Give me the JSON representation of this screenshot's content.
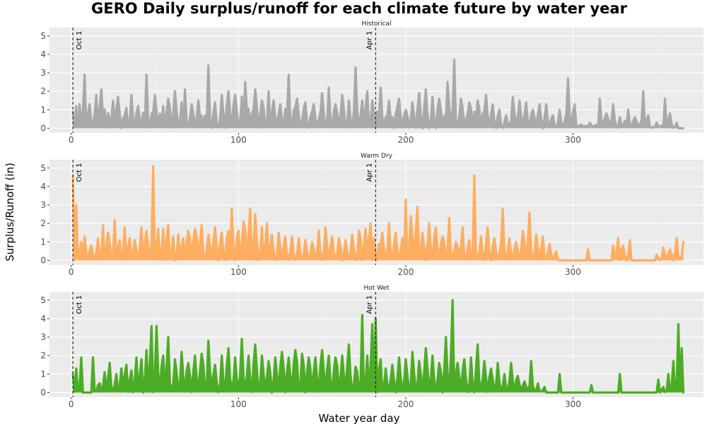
{
  "chart_data": {
    "type": "area",
    "title": "GERO Daily surplus/runoff for each climate future by water year",
    "xlabel": "Water year day",
    "ylabel": "Surplus/Runoff (in)",
    "xlim": [
      -13,
      378
    ],
    "ylim": [
      -0.25,
      5.45
    ],
    "x_ticks": [
      0,
      100,
      200,
      300
    ],
    "y_ticks": [
      0,
      1,
      2,
      3,
      4,
      5
    ],
    "grid": true,
    "legend": "none",
    "vlines": [
      {
        "x": 1,
        "label": "Oct 1"
      },
      {
        "x": 182,
        "label": "Apr 1"
      }
    ],
    "x_range": [
      0,
      366
    ],
    "panels": [
      {
        "strip": "Historical",
        "color": "#a9a9a9",
        "peaks": [
          {
            "x": 1,
            "y": 0.9
          },
          {
            "x": 3,
            "y": 1.2
          },
          {
            "x": 5,
            "y": 1.3
          },
          {
            "x": 8,
            "y": 2.9
          },
          {
            "x": 11,
            "y": 1.3
          },
          {
            "x": 15,
            "y": 1.8
          },
          {
            "x": 18,
            "y": 2.1
          },
          {
            "x": 25,
            "y": 1.5
          },
          {
            "x": 28,
            "y": 1.7
          },
          {
            "x": 33,
            "y": 1.1
          },
          {
            "x": 36,
            "y": 1.8
          },
          {
            "x": 40,
            "y": 1.2
          },
          {
            "x": 45,
            "y": 2.9
          },
          {
            "x": 50,
            "y": 1.8
          },
          {
            "x": 55,
            "y": 1.2
          },
          {
            "x": 58,
            "y": 1.6
          },
          {
            "x": 62,
            "y": 2.0
          },
          {
            "x": 66,
            "y": 1.4
          },
          {
            "x": 68,
            "y": 2.1
          },
          {
            "x": 72,
            "y": 1.3
          },
          {
            "x": 76,
            "y": 1.5
          },
          {
            "x": 82,
            "y": 3.4
          },
          {
            "x": 86,
            "y": 1.4
          },
          {
            "x": 90,
            "y": 1.8
          },
          {
            "x": 94,
            "y": 2.0
          },
          {
            "x": 98,
            "y": 1.8
          },
          {
            "x": 102,
            "y": 1.7
          },
          {
            "x": 104,
            "y": 2.5
          },
          {
            "x": 110,
            "y": 2.1
          },
          {
            "x": 114,
            "y": 1.5
          },
          {
            "x": 118,
            "y": 2.0
          },
          {
            "x": 121,
            "y": 1.5
          },
          {
            "x": 125,
            "y": 1.3
          },
          {
            "x": 130,
            "y": 2.9
          },
          {
            "x": 135,
            "y": 1.6
          },
          {
            "x": 140,
            "y": 1.4
          },
          {
            "x": 145,
            "y": 1.3
          },
          {
            "x": 150,
            "y": 1.9
          },
          {
            "x": 154,
            "y": 2.2
          },
          {
            "x": 158,
            "y": 1.3
          },
          {
            "x": 162,
            "y": 1.8
          },
          {
            "x": 166,
            "y": 1.5
          },
          {
            "x": 170,
            "y": 3.3
          },
          {
            "x": 174,
            "y": 1.5
          },
          {
            "x": 177,
            "y": 2.0
          },
          {
            "x": 180,
            "y": 1.5
          },
          {
            "x": 185,
            "y": 2.2
          },
          {
            "x": 190,
            "y": 1.5
          },
          {
            "x": 196,
            "y": 1.6
          },
          {
            "x": 200,
            "y": 1.0
          },
          {
            "x": 204,
            "y": 1.4
          },
          {
            "x": 208,
            "y": 1.9
          },
          {
            "x": 212,
            "y": 2.1
          },
          {
            "x": 216,
            "y": 1.7
          },
          {
            "x": 220,
            "y": 1.6
          },
          {
            "x": 225,
            "y": 2.5
          },
          {
            "x": 229,
            "y": 3.7
          },
          {
            "x": 233,
            "y": 1.6
          },
          {
            "x": 238,
            "y": 1.4
          },
          {
            "x": 243,
            "y": 1.5
          },
          {
            "x": 248,
            "y": 1.8
          },
          {
            "x": 252,
            "y": 1.3
          },
          {
            "x": 256,
            "y": 1.0
          },
          {
            "x": 260,
            "y": 0.7
          },
          {
            "x": 264,
            "y": 1.7
          },
          {
            "x": 268,
            "y": 1.5
          },
          {
            "x": 272,
            "y": 1.4
          },
          {
            "x": 276,
            "y": 1.0
          },
          {
            "x": 280,
            "y": 1.3
          },
          {
            "x": 284,
            "y": 1.3
          },
          {
            "x": 288,
            "y": 0.7
          },
          {
            "x": 292,
            "y": 1.0
          },
          {
            "x": 297,
            "y": 2.7
          },
          {
            "x": 301,
            "y": 1.3
          },
          {
            "x": 305,
            "y": 0.2
          },
          {
            "x": 310,
            "y": 0.3
          },
          {
            "x": 316,
            "y": 1.6
          },
          {
            "x": 320,
            "y": 0.8
          },
          {
            "x": 324,
            "y": 1.3
          },
          {
            "x": 328,
            "y": 0.6
          },
          {
            "x": 333,
            "y": 1.0
          },
          {
            "x": 337,
            "y": 0.6
          },
          {
            "x": 342,
            "y": 2.0
          },
          {
            "x": 345,
            "y": 0.7
          },
          {
            "x": 350,
            "y": 0.3
          },
          {
            "x": 355,
            "y": 1.6
          },
          {
            "x": 358,
            "y": 0.8
          },
          {
            "x": 362,
            "y": 0.3
          },
          {
            "x": 366,
            "y": 0.0
          }
        ]
      },
      {
        "strip": "Warm Dry",
        "color": "#fdae61",
        "peaks": [
          {
            "x": 1,
            "y": 4.6
          },
          {
            "x": 3,
            "y": 3.0
          },
          {
            "x": 6,
            "y": 1.0
          },
          {
            "x": 8,
            "y": 1.3
          },
          {
            "x": 12,
            "y": 0.8
          },
          {
            "x": 16,
            "y": 1.2
          },
          {
            "x": 19,
            "y": 1.9
          },
          {
            "x": 22,
            "y": 1.5
          },
          {
            "x": 26,
            "y": 2.2
          },
          {
            "x": 29,
            "y": 1.1
          },
          {
            "x": 32,
            "y": 1.8
          },
          {
            "x": 35,
            "y": 1.2
          },
          {
            "x": 38,
            "y": 1.1
          },
          {
            "x": 42,
            "y": 1.8
          },
          {
            "x": 45,
            "y": 1.6
          },
          {
            "x": 49,
            "y": 5.1
          },
          {
            "x": 52,
            "y": 1.7
          },
          {
            "x": 55,
            "y": 1.7
          },
          {
            "x": 58,
            "y": 1.9
          },
          {
            "x": 61,
            "y": 1.3
          },
          {
            "x": 64,
            "y": 1.4
          },
          {
            "x": 67,
            "y": 1.2
          },
          {
            "x": 70,
            "y": 1.6
          },
          {
            "x": 74,
            "y": 1.7
          },
          {
            "x": 78,
            "y": 1.9
          },
          {
            "x": 82,
            "y": 1.4
          },
          {
            "x": 86,
            "y": 1.8
          },
          {
            "x": 90,
            "y": 1.5
          },
          {
            "x": 94,
            "y": 1.6
          },
          {
            "x": 96,
            "y": 2.8
          },
          {
            "x": 100,
            "y": 1.6
          },
          {
            "x": 103,
            "y": 2.1
          },
          {
            "x": 107,
            "y": 2.8
          },
          {
            "x": 110,
            "y": 2.5
          },
          {
            "x": 114,
            "y": 1.8
          },
          {
            "x": 117,
            "y": 2.0
          },
          {
            "x": 120,
            "y": 1.4
          },
          {
            "x": 124,
            "y": 1.5
          },
          {
            "x": 128,
            "y": 1.3
          },
          {
            "x": 132,
            "y": 1.3
          },
          {
            "x": 136,
            "y": 1.2
          },
          {
            "x": 140,
            "y": 1.1
          },
          {
            "x": 144,
            "y": 1.0
          },
          {
            "x": 148,
            "y": 1.6
          },
          {
            "x": 152,
            "y": 1.8
          },
          {
            "x": 156,
            "y": 1.3
          },
          {
            "x": 160,
            "y": 1.2
          },
          {
            "x": 164,
            "y": 1.1
          },
          {
            "x": 168,
            "y": 1.4
          },
          {
            "x": 172,
            "y": 1.6
          },
          {
            "x": 176,
            "y": 1.7
          },
          {
            "x": 179,
            "y": 2.0
          },
          {
            "x": 181,
            "y": 1.2
          },
          {
            "x": 186,
            "y": 1.5
          },
          {
            "x": 190,
            "y": 2.0
          },
          {
            "x": 194,
            "y": 1.5
          },
          {
            "x": 198,
            "y": 1.2
          },
          {
            "x": 200,
            "y": 3.3
          },
          {
            "x": 203,
            "y": 2.4
          },
          {
            "x": 207,
            "y": 2.9
          },
          {
            "x": 210,
            "y": 1.5
          },
          {
            "x": 214,
            "y": 2.0
          },
          {
            "x": 218,
            "y": 1.8
          },
          {
            "x": 222,
            "y": 1.3
          },
          {
            "x": 226,
            "y": 2.3
          },
          {
            "x": 230,
            "y": 1.0
          },
          {
            "x": 234,
            "y": 1.8
          },
          {
            "x": 238,
            "y": 1.1
          },
          {
            "x": 241,
            "y": 4.6
          },
          {
            "x": 245,
            "y": 1.3
          },
          {
            "x": 249,
            "y": 1.8
          },
          {
            "x": 253,
            "y": 1.2
          },
          {
            "x": 258,
            "y": 2.8
          },
          {
            "x": 262,
            "y": 1.2
          },
          {
            "x": 266,
            "y": 1.0
          },
          {
            "x": 270,
            "y": 1.6
          },
          {
            "x": 274,
            "y": 2.6
          },
          {
            "x": 278,
            "y": 1.4
          },
          {
            "x": 282,
            "y": 1.3
          },
          {
            "x": 286,
            "y": 0.9
          },
          {
            "x": 290,
            "y": 0.5
          },
          {
            "x": 295,
            "y": 0.0
          },
          {
            "x": 305,
            "y": 0.0
          },
          {
            "x": 309,
            "y": 0.6
          },
          {
            "x": 313,
            "y": 0.0
          },
          {
            "x": 320,
            "y": 0.0
          },
          {
            "x": 324,
            "y": 0.8
          },
          {
            "x": 327,
            "y": 1.2
          },
          {
            "x": 330,
            "y": 0.8
          },
          {
            "x": 334,
            "y": 1.1
          },
          {
            "x": 338,
            "y": 0.0
          },
          {
            "x": 350,
            "y": 0.3
          },
          {
            "x": 354,
            "y": 0.7
          },
          {
            "x": 358,
            "y": 0.6
          },
          {
            "x": 362,
            "y": 1.2
          },
          {
            "x": 366,
            "y": 1.0
          }
        ]
      },
      {
        "strip": "Hot Wet",
        "color": "#4dac26",
        "peaks": [
          {
            "x": 1,
            "y": 1.0
          },
          {
            "x": 3,
            "y": 1.3
          },
          {
            "x": 6,
            "y": 1.9
          },
          {
            "x": 10,
            "y": 0.0
          },
          {
            "x": 13,
            "y": 1.9
          },
          {
            "x": 17,
            "y": 0.5
          },
          {
            "x": 20,
            "y": 1.1
          },
          {
            "x": 23,
            "y": 1.6
          },
          {
            "x": 27,
            "y": 1.0
          },
          {
            "x": 30,
            "y": 1.3
          },
          {
            "x": 33,
            "y": 1.5
          },
          {
            "x": 36,
            "y": 1.2
          },
          {
            "x": 39,
            "y": 1.9
          },
          {
            "x": 42,
            "y": 1.8
          },
          {
            "x": 45,
            "y": 2.3
          },
          {
            "x": 48,
            "y": 3.6
          },
          {
            "x": 51,
            "y": 3.6
          },
          {
            "x": 55,
            "y": 2.0
          },
          {
            "x": 58,
            "y": 3.0
          },
          {
            "x": 62,
            "y": 1.8
          },
          {
            "x": 66,
            "y": 2.2
          },
          {
            "x": 70,
            "y": 1.6
          },
          {
            "x": 74,
            "y": 2.0
          },
          {
            "x": 78,
            "y": 2.1
          },
          {
            "x": 82,
            "y": 2.8
          },
          {
            "x": 86,
            "y": 1.5
          },
          {
            "x": 90,
            "y": 2.0
          },
          {
            "x": 94,
            "y": 2.4
          },
          {
            "x": 98,
            "y": 1.9
          },
          {
            "x": 102,
            "y": 2.9
          },
          {
            "x": 106,
            "y": 2.0
          },
          {
            "x": 110,
            "y": 2.6
          },
          {
            "x": 114,
            "y": 2.0
          },
          {
            "x": 118,
            "y": 1.7
          },
          {
            "x": 122,
            "y": 1.9
          },
          {
            "x": 126,
            "y": 2.2
          },
          {
            "x": 130,
            "y": 1.9
          },
          {
            "x": 134,
            "y": 2.3
          },
          {
            "x": 138,
            "y": 2.1
          },
          {
            "x": 142,
            "y": 1.9
          },
          {
            "x": 146,
            "y": 1.9
          },
          {
            "x": 150,
            "y": 2.3
          },
          {
            "x": 154,
            "y": 2.0
          },
          {
            "x": 158,
            "y": 1.9
          },
          {
            "x": 162,
            "y": 2.0
          },
          {
            "x": 166,
            "y": 2.6
          },
          {
            "x": 170,
            "y": 1.4
          },
          {
            "x": 174,
            "y": 4.2
          },
          {
            "x": 177,
            "y": 2.0
          },
          {
            "x": 180,
            "y": 3.7
          },
          {
            "x": 182,
            "y": 4.0
          },
          {
            "x": 185,
            "y": 1.8
          },
          {
            "x": 188,
            "y": 1.3
          },
          {
            "x": 192,
            "y": 1.5
          },
          {
            "x": 196,
            "y": 1.9
          },
          {
            "x": 200,
            "y": 1.8
          },
          {
            "x": 204,
            "y": 2.2
          },
          {
            "x": 208,
            "y": 1.7
          },
          {
            "x": 212,
            "y": 2.4
          },
          {
            "x": 216,
            "y": 2.0
          },
          {
            "x": 220,
            "y": 1.6
          },
          {
            "x": 224,
            "y": 3.0
          },
          {
            "x": 228,
            "y": 5.0
          },
          {
            "x": 231,
            "y": 1.6
          },
          {
            "x": 235,
            "y": 1.8
          },
          {
            "x": 239,
            "y": 1.9
          },
          {
            "x": 243,
            "y": 2.6
          },
          {
            "x": 247,
            "y": 1.7
          },
          {
            "x": 251,
            "y": 1.3
          },
          {
            "x": 255,
            "y": 1.6
          },
          {
            "x": 259,
            "y": 1.0
          },
          {
            "x": 263,
            "y": 1.6
          },
          {
            "x": 267,
            "y": 0.9
          },
          {
            "x": 271,
            "y": 0.6
          },
          {
            "x": 275,
            "y": 1.7
          },
          {
            "x": 279,
            "y": 0.5
          },
          {
            "x": 283,
            "y": 0.3
          },
          {
            "x": 287,
            "y": 0.0
          },
          {
            "x": 292,
            "y": 1.0
          },
          {
            "x": 295,
            "y": 0.0
          },
          {
            "x": 308,
            "y": 0.0
          },
          {
            "x": 311,
            "y": 0.4
          },
          {
            "x": 314,
            "y": 0.0
          },
          {
            "x": 325,
            "y": 0.0
          },
          {
            "x": 328,
            "y": 1.0
          },
          {
            "x": 331,
            "y": 0.0
          },
          {
            "x": 348,
            "y": 0.0
          },
          {
            "x": 351,
            "y": 0.7
          },
          {
            "x": 354,
            "y": 0.3
          },
          {
            "x": 357,
            "y": 1.0
          },
          {
            "x": 360,
            "y": 1.7
          },
          {
            "x": 363,
            "y": 3.7
          },
          {
            "x": 365,
            "y": 2.4
          },
          {
            "x": 366,
            "y": 0.0
          }
        ]
      }
    ]
  }
}
